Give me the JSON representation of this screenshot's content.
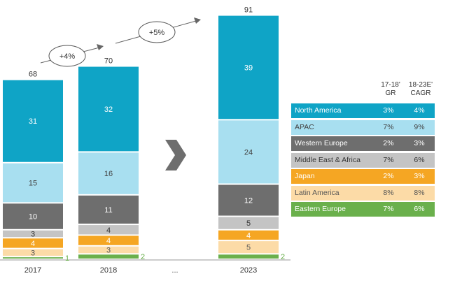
{
  "chart_data": {
    "type": "bar",
    "stacked": true,
    "categories": [
      "2017",
      "2018",
      "...",
      "2023"
    ],
    "separator_label": "...",
    "totals": {
      "2017": 68,
      "2018": 70,
      "2023": 91
    },
    "series": [
      {
        "name": "Eastern Europe",
        "color": "#6ab04c",
        "text_color": "#ffffff",
        "gr": "7%",
        "cagr": "6%",
        "values": {
          "2017": 1,
          "2018": 2,
          "2023": 2
        },
        "label_outside": true
      },
      {
        "name": "Latin America",
        "color": "#fcdba7",
        "text_color": "#555555",
        "gr": "8%",
        "cagr": "8%",
        "values": {
          "2017": 3,
          "2018": 3,
          "2023": 5
        }
      },
      {
        "name": "Japan",
        "color": "#f5a623",
        "text_color": "#ffffff",
        "gr": "2%",
        "cagr": "3%",
        "values": {
          "2017": 4,
          "2018": 4,
          "2023": 4
        }
      },
      {
        "name": "Middle East & Africa",
        "color": "#c4c4c4",
        "text_color": "#333333",
        "gr": "7%",
        "cagr": "6%",
        "values": {
          "2017": 3,
          "2018": 4,
          "2023": 5
        }
      },
      {
        "name": "Western Europe",
        "color": "#6e6e6e",
        "text_color": "#ffffff",
        "gr": "2%",
        "cagr": "3%",
        "values": {
          "2017": 10,
          "2018": 11,
          "2023": 12
        }
      },
      {
        "name": "APAC",
        "color": "#a8dff0",
        "text_color": "#444444",
        "gr": "7%",
        "cagr": "9%",
        "values": {
          "2017": 15,
          "2018": 16,
          "2023": 24
        }
      },
      {
        "name": "North America",
        "color": "#0fa4c6",
        "text_color": "#ffffff",
        "gr": "3%",
        "cagr": "4%",
        "values": {
          "2017": 31,
          "2018": 32,
          "2023": 39
        }
      }
    ],
    "legend_order": [
      "North America",
      "APAC",
      "Western Europe",
      "Middle East & Africa",
      "Japan",
      "Latin America",
      "Eastern Europe"
    ],
    "table_headers": {
      "gr": "17-18'\nGR",
      "cagr": "18-23E'\nCAGR"
    },
    "growth_annotations": [
      {
        "label": "+4%",
        "from": "2017",
        "to": "2018"
      },
      {
        "label": "+5%",
        "from": "2018",
        "to": "2023"
      }
    ],
    "title": "",
    "xlabel": "",
    "ylabel": "",
    "grid": false,
    "legend_placement": "right"
  }
}
